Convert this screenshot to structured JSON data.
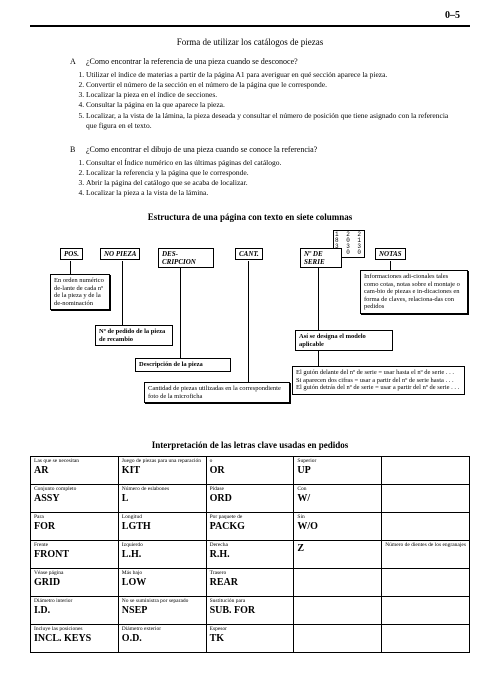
{
  "page_number": "0–5",
  "main_title": "Forma de utilizar los catálogos de piezas",
  "qa": {
    "label": "A",
    "text": "¿Como encontrar la referencia de una pieza cuando se desconoce?",
    "steps": [
      "Utilizar el índice de materias a partir de la página A1 para averiguar en qué sección aparece la pieza.",
      "Convertir el número de la sección en el número de la página que le corresponde.",
      "Localizar la pieza en el índice de secciones.",
      "Consultar la página en la que aparece la pieza.",
      "Localizar, a la vista de la lámina, la pieza deseada y consultar el número de posición que tiene asignado con la referencia que figura en el texto."
    ]
  },
  "qb": {
    "label": "B",
    "text": "¿Como encontrar el dibujo de una pieza cuando se conoce la referencia?",
    "steps": [
      "Consultar el Índice numérico en las últimas páginas del catálogo.",
      "Localizar la referencia y la página que le corresponde.",
      "Abrir la página del catálogo que se acaba de localizar.",
      "Localizar la pieza a la vista de la lámina."
    ]
  },
  "structure_title": "Estructura de una página con texto en siete columnas",
  "diagram": {
    "headers": {
      "pos": "POS.",
      "nopieza": "NO PIEZA",
      "desc": "DES-CRIPCION",
      "cant": "CANT.",
      "serie": "Nº DE SERIE",
      "notas": "NOTAS"
    },
    "box_orden": "En orden numérico de-lante de cada nº de la pieza y de la de-nominación",
    "box_pedido": "Nº de pedido de la pieza de recambio",
    "box_desc": "Descripción de la pieza",
    "box_cant": "Cantidad de piezas utilizadas en la correspondiente foto de la microficha",
    "box_info": "Informaciones adi-cionales tales como cotas, notas sobre el montaje o cam-bio de piezas e in-dicaciones en forma de claves, relaciona-das con pedidos",
    "box_modelo": "Así se designa el modelo aplicable",
    "box_guiones": "El guión delante del nº de serie = usar hasta el nº de serie . . .\nSi aparecen dos cifras = usar a partir del nº de serie hasta . . .\nEl guión detrás del nº de serie = usar a partir del nº de serie . . .",
    "numgrid": [
      "1 2 2",
      "8 0 1",
      "3 3 3",
      "0 0 0"
    ]
  },
  "table_title": "Interpretación de las letras clave usadas en pedidos",
  "keys_table": [
    [
      {
        "small": "Las que se necesitan",
        "big": "AR"
      },
      {
        "small": "Juego de piezas para una reparación",
        "big": "KIT"
      },
      {
        "small": "o",
        "big": "OR"
      },
      {
        "small": "Superior",
        "big": "UP"
      },
      {
        "small": "",
        "big": ""
      }
    ],
    [
      {
        "small": "Conjunto completo",
        "big": "ASSY"
      },
      {
        "small": "Número de eslabones",
        "big": "L"
      },
      {
        "small": "Pídase",
        "big": "ORD"
      },
      {
        "small": "Con",
        "big": "W/"
      },
      {
        "small": "",
        "big": ""
      }
    ],
    [
      {
        "small": "Para",
        "big": "FOR"
      },
      {
        "small": "Longitud",
        "big": "LGTH"
      },
      {
        "small": "Por paquete de",
        "big": "PACKG"
      },
      {
        "small": "Sin",
        "big": "W/O"
      },
      {
        "small": "",
        "big": ""
      }
    ],
    [
      {
        "small": "Frente",
        "big": "FRONT"
      },
      {
        "small": "Izquierdo",
        "big": "L.H."
      },
      {
        "small": "Derecha",
        "big": "R.H."
      },
      {
        "small": "",
        "big": "Z"
      },
      {
        "small": "Número de dientes de los engranajes",
        "big": ""
      }
    ],
    [
      {
        "small": "Véase página",
        "big": "GRID"
      },
      {
        "small": "Más bajo",
        "big": "LOW"
      },
      {
        "small": "Trasero",
        "big": "REAR"
      },
      {
        "small": "",
        "big": ""
      },
      {
        "small": "",
        "big": ""
      }
    ],
    [
      {
        "small": "Diámetro interior",
        "big": "I.D."
      },
      {
        "small": "No se suministra por separado",
        "big": "NSEP"
      },
      {
        "small": "Sustitución para",
        "big": "SUB. FOR"
      },
      {
        "small": "",
        "big": ""
      },
      {
        "small": "",
        "big": ""
      }
    ],
    [
      {
        "small": "Incluye las posiciones",
        "big": "INCL. KEYS"
      },
      {
        "small": "Diámetro exterior",
        "big": "O.D."
      },
      {
        "small": "Espesor",
        "big": "TK"
      },
      {
        "small": "",
        "big": ""
      },
      {
        "small": "",
        "big": ""
      }
    ]
  ]
}
